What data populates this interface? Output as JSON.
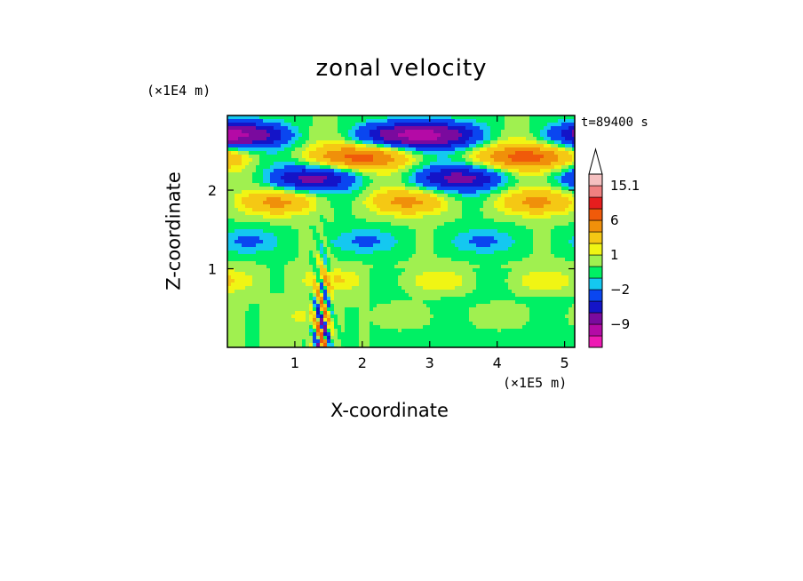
{
  "chart_data": {
    "type": "heatmap",
    "title": "zonal velocity",
    "xlabel": "X-coordinate",
    "ylabel": "Z-coordinate",
    "x_unit": "(×1E5 m)",
    "y_unit": "(×1E4 m)",
    "time_label": "t=89400 s",
    "xlim": [
      0,
      5.15
    ],
    "ylim": [
      0,
      2.95
    ],
    "x_ticks": [
      1,
      2,
      3,
      4,
      5
    ],
    "y_ticks": [
      1,
      2
    ],
    "x_tick_labels": [
      "1",
      "2",
      "3",
      "4",
      "5"
    ],
    "y_tick_labels": [
      "1",
      "2"
    ],
    "colorbar": {
      "levels": [
        -15,
        -12,
        -9,
        -6,
        -4,
        -2,
        -1,
        0,
        1,
        2,
        4,
        6,
        9,
        12,
        15.1
      ],
      "colors": [
        "#ee1ab4",
        "#b40aa6",
        "#7a0a9e",
        "#1414c8",
        "#0a46f0",
        "#14c8f0",
        "#00f064",
        "#a0f050",
        "#f0f514",
        "#f5c814",
        "#f0900a",
        "#f05a0a",
        "#e61e1e",
        "#f08080",
        "#f5c0c0"
      ],
      "labels": [
        {
          "level": 15.1,
          "text": "15.1"
        },
        {
          "level": 6,
          "text": "6"
        },
        {
          "level": 1,
          "text": "1"
        },
        {
          "level": -2,
          "text": "−2"
        },
        {
          "level": -9,
          "text": "−9"
        }
      ],
      "extend": "max"
    },
    "bands": [
      {
        "z": 2.7,
        "u": -9,
        "amp": 1.0
      },
      {
        "z": 2.42,
        "u": 6,
        "amp": 1.0
      },
      {
        "z": 2.15,
        "u": -6,
        "amp": 1.0
      },
      {
        "z": 1.85,
        "u": 4,
        "amp": 1.0
      },
      {
        "z": 1.35,
        "u": -2,
        "amp": 1.0
      },
      {
        "z": 0.85,
        "u": 2,
        "amp": 1.0
      },
      {
        "z": 0.4,
        "u": 1,
        "amp": 1.0
      }
    ]
  }
}
